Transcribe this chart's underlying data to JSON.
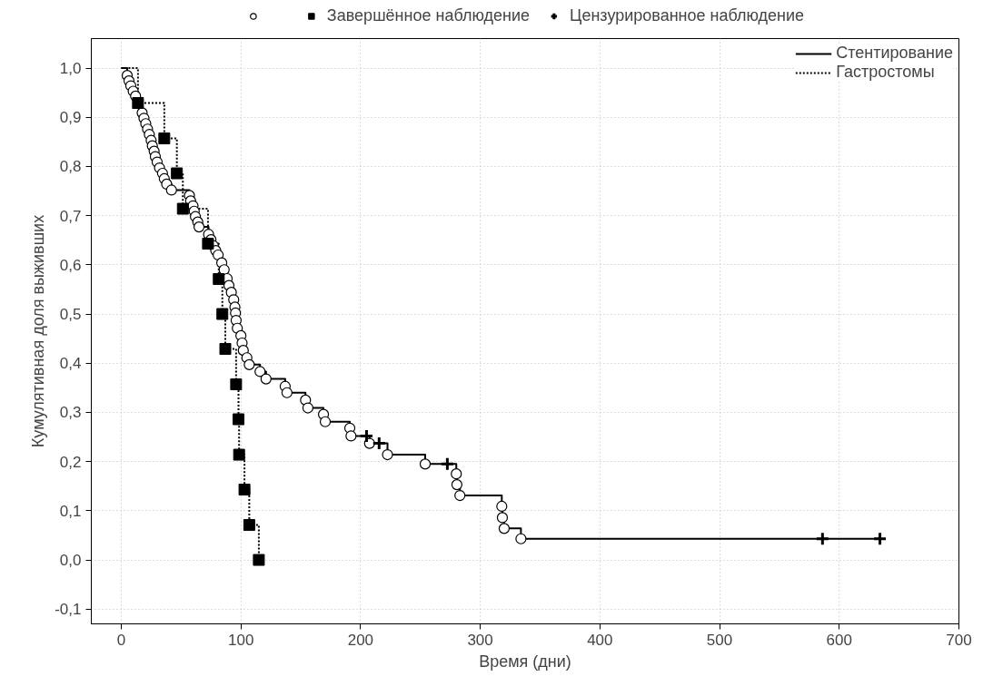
{
  "chart_data": {
    "type": "step",
    "xlabel": "Время (дни)",
    "ylabel": "Кумулятивная доля выживших",
    "xlim": [
      -25,
      700
    ],
    "xticks": [
      0,
      100,
      200,
      300,
      400,
      500,
      600,
      700
    ],
    "ylim": [
      -0.13,
      1.06
    ],
    "yticks": [
      {
        "value": -0.1,
        "label": "-0,1"
      },
      {
        "value": 0,
        "label": "0,0"
      },
      {
        "value": 0.1,
        "label": "0,1"
      },
      {
        "value": 0.2,
        "label": "0,2"
      },
      {
        "value": 0.3,
        "label": "0,3"
      },
      {
        "value": 0.4,
        "label": "0,4"
      },
      {
        "value": 0.5,
        "label": "0,5"
      },
      {
        "value": 0.6,
        "label": "0,6"
      },
      {
        "value": 0.7,
        "label": "0,7"
      },
      {
        "value": 0.8,
        "label": "0,8"
      },
      {
        "value": 0.9,
        "label": "0,9"
      },
      {
        "value": 1.0,
        "label": "1,0"
      }
    ],
    "grid": true,
    "legend": "top right",
    "series": [
      {
        "name": "Стентирование",
        "color": "#000000",
        "line_style": "solid",
        "x": [
          0,
          5,
          6.5,
          8,
          10,
          12,
          14,
          16,
          17.5,
          19,
          20.5,
          22,
          23.5,
          25,
          26,
          27.5,
          28.5,
          30,
          32,
          34.5,
          36,
          38,
          42,
          57,
          58,
          60,
          61,
          62,
          64,
          65,
          73,
          75,
          77,
          79,
          81,
          84,
          86,
          88.5,
          90,
          92,
          94,
          95,
          95.5,
          96,
          97,
          100,
          101,
          102,
          105,
          107,
          116,
          121,
          137,
          138.5,
          154,
          156,
          169,
          170.5,
          191,
          192,
          205,
          207.5,
          215.5,
          222.5,
          254,
          272.5,
          280,
          280.5,
          283,
          318,
          318.5,
          320,
          334,
          586,
          634
        ],
        "values": [
          1.0,
          0.985,
          0.974,
          0.964,
          0.953,
          0.943,
          0.932,
          0.921,
          0.909,
          0.898,
          0.887,
          0.876,
          0.865,
          0.853,
          0.842,
          0.831,
          0.82,
          0.809,
          0.797,
          0.786,
          0.775,
          0.764,
          0.752,
          0.741,
          0.73,
          0.72,
          0.709,
          0.698,
          0.687,
          0.677,
          0.662,
          0.651,
          0.639,
          0.629,
          0.62,
          0.604,
          0.59,
          0.572,
          0.558,
          0.544,
          0.529,
          0.514,
          0.502,
          0.487,
          0.471,
          0.456,
          0.441,
          0.426,
          0.411,
          0.397,
          0.383,
          0.368,
          0.353,
          0.34,
          0.325,
          0.309,
          0.296,
          0.281,
          0.268,
          0.252,
          0.252,
          0.237,
          0.237,
          0.214,
          0.195,
          0.195,
          0.175,
          0.153,
          0.131,
          0.109,
          0.086,
          0.064,
          0.043,
          0.043,
          0.043
        ]
      },
      {
        "name": "Гастростомы",
        "color": "#000000",
        "line_style": "dotted",
        "x": [
          0,
          14,
          36,
          46.5,
          51.5,
          72.5,
          81.5,
          84.5,
          87,
          96,
          98,
          98.5,
          103,
          107,
          115
        ],
        "values": [
          1.0,
          0.929,
          0.857,
          0.786,
          0.714,
          0.643,
          0.571,
          0.5,
          0.429,
          0.357,
          0.286,
          0.214,
          0.143,
          0.071,
          0.0
        ]
      },
      {
        "type": "scatter",
        "marker": "circle",
        "color": "#000000",
        "x": [
          5,
          6.5,
          8,
          10,
          12,
          17.5,
          19,
          20.5,
          22,
          23.5,
          25,
          26,
          27.5,
          28.5,
          30,
          32,
          34.5,
          36,
          38,
          42,
          57,
          58,
          60,
          61,
          62,
          64,
          65,
          73,
          75,
          77,
          79,
          81,
          84,
          86,
          88.5,
          90,
          92,
          94,
          95,
          95.5,
          96,
          97,
          100,
          101,
          102,
          105,
          107,
          116,
          121,
          137,
          138.5,
          154,
          156,
          169,
          170.5,
          191,
          192,
          207.5,
          222.5,
          254,
          280,
          280.5,
          283,
          318,
          318.5,
          320,
          334
        ],
        "values": [
          0.985,
          0.974,
          0.964,
          0.953,
          0.943,
          0.909,
          0.898,
          0.887,
          0.876,
          0.865,
          0.853,
          0.842,
          0.831,
          0.82,
          0.809,
          0.797,
          0.786,
          0.775,
          0.764,
          0.752,
          0.741,
          0.73,
          0.72,
          0.709,
          0.698,
          0.687,
          0.677,
          0.662,
          0.651,
          0.639,
          0.629,
          0.62,
          0.604,
          0.59,
          0.572,
          0.558,
          0.544,
          0.529,
          0.514,
          0.502,
          0.487,
          0.471,
          0.456,
          0.441,
          0.426,
          0.411,
          0.397,
          0.383,
          0.368,
          0.353,
          0.34,
          0.325,
          0.309,
          0.296,
          0.281,
          0.268,
          0.252,
          0.237,
          0.214,
          0.195,
          0.175,
          0.153,
          0.131,
          0.109,
          0.086,
          0.064,
          0.043
        ]
      },
      {
        "type": "scatter",
        "name": "Завершённое наблюдение",
        "marker": "square",
        "color": "#000000",
        "x": [
          14,
          36,
          46.5,
          51.5,
          72.5,
          81.5,
          84.5,
          87,
          96,
          98,
          98.5,
          103,
          107,
          115
        ],
        "values": [
          0.929,
          0.857,
          0.786,
          0.714,
          0.643,
          0.571,
          0.5,
          0.429,
          0.357,
          0.286,
          0.214,
          0.143,
          0.071,
          0.0
        ]
      },
      {
        "type": "scatter",
        "name": "Цензурированное наблюдение",
        "marker": "cross",
        "color": "#000000",
        "x": [
          205,
          215.5,
          272.5,
          586,
          634
        ],
        "values": [
          0.252,
          0.237,
          0.195,
          0.043,
          0.043
        ]
      }
    ]
  }
}
